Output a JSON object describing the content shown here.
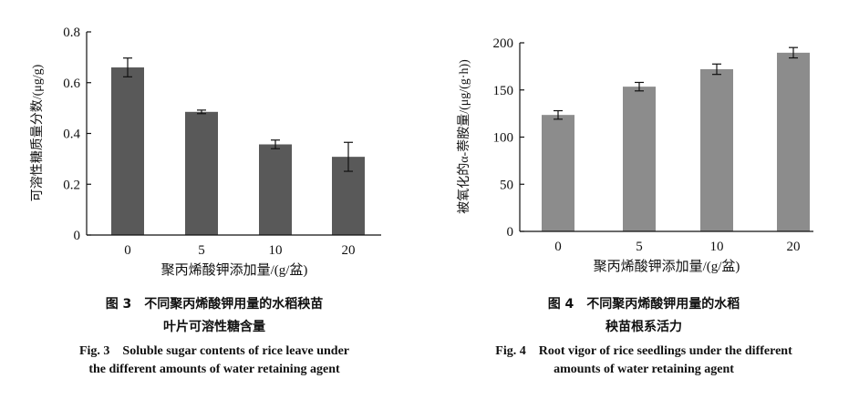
{
  "chart_data": [
    {
      "type": "bar",
      "categories": [
        "0",
        "5",
        "10",
        "20"
      ],
      "values": [
        0.66,
        0.485,
        0.357,
        0.308
      ],
      "errors": [
        0.037,
        0.007,
        0.017,
        0.057
      ],
      "ylim": [
        0,
        0.8
      ],
      "yticks": [
        "0",
        "0.2",
        "0.4",
        "0.6",
        "0.8"
      ],
      "ylabel": "可溶性糖质量分数/(μg/g)",
      "xlabel": "聚丙烯酸钾添加量/(g/盆)",
      "bar_color": "#595959",
      "caption_cn_1": "图 3　不同聚丙烯酸钾用量的水稻秧苗",
      "caption_cn_2": "叶片可溶性糖含量",
      "caption_en_1": "Fig. 3　Soluble sugar contents of rice leave under",
      "caption_en_2": "the different amounts of water retaining agent"
    },
    {
      "type": "bar",
      "categories": [
        "0",
        "5",
        "10",
        "20"
      ],
      "values": [
        123.5,
        153.5,
        172,
        189.5
      ],
      "errors": [
        4.5,
        4.5,
        5.5,
        5.5
      ],
      "ylim": [
        0,
        200
      ],
      "yticks": [
        "0",
        "50",
        "100",
        "150",
        "200"
      ],
      "ylabel": "被氧化的α-萘胺量/(μg/(g·h))",
      "xlabel": "聚丙烯酸钾添加量/(g/盆)",
      "bar_color": "#8c8c8c",
      "caption_cn_1": "图 4　不同聚丙烯酸钾用量的水稻",
      "caption_cn_2": "秧苗根系活力",
      "caption_en_1": "Fig. 4　Root vigor of rice seedlings under the different",
      "caption_en_2": "amounts of water retaining agent"
    }
  ]
}
